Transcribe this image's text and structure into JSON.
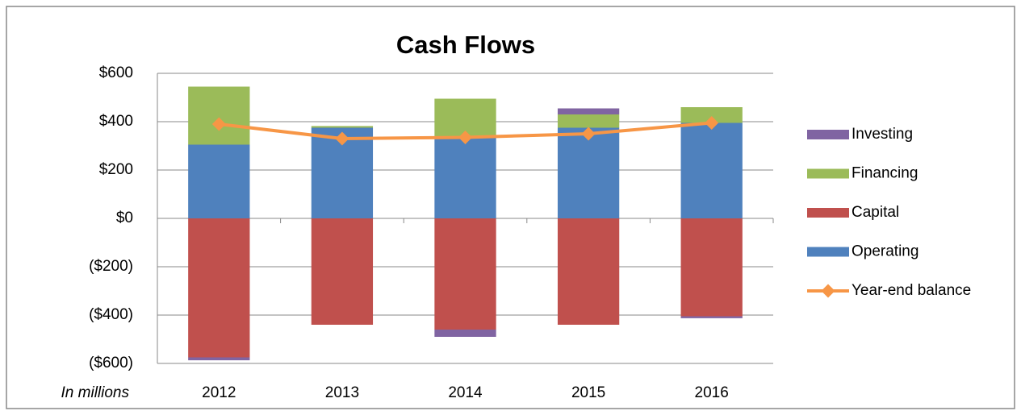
{
  "chart_data": {
    "type": "bar",
    "stacked": true,
    "title": "Cash Flows",
    "axis_note": "In millions",
    "categories": [
      "2012",
      "2013",
      "2014",
      "2015",
      "2016"
    ],
    "series": [
      {
        "name": "Investing",
        "color": "#8064a2",
        "values": [
          -12,
          0,
          -30,
          25,
          -8
        ]
      },
      {
        "name": "Financing",
        "color": "#9bbb59",
        "values": [
          240,
          7,
          155,
          55,
          65
        ]
      },
      {
        "name": "Capital",
        "color": "#c0504d",
        "values": [
          -575,
          -440,
          -460,
          -440,
          -405
        ]
      },
      {
        "name": "Operating",
        "color": "#4f81bd",
        "values": [
          305,
          375,
          340,
          375,
          395
        ]
      },
      {
        "name": "Year-end balance",
        "color": "#f79646",
        "type": "line",
        "values": [
          390,
          330,
          335,
          350,
          395
        ]
      }
    ],
    "ylim": [
      -600,
      600
    ],
    "yticks": [
      {
        "value": -600,
        "label": "($600)"
      },
      {
        "value": -400,
        "label": "($400)"
      },
      {
        "value": -200,
        "label": "($200)"
      },
      {
        "value": 0,
        "label": "$0"
      },
      {
        "value": 200,
        "label": "$200"
      },
      {
        "value": 400,
        "label": "$400"
      },
      {
        "value": 600,
        "label": "$600"
      }
    ],
    "grid": true,
    "legend": "right"
  }
}
